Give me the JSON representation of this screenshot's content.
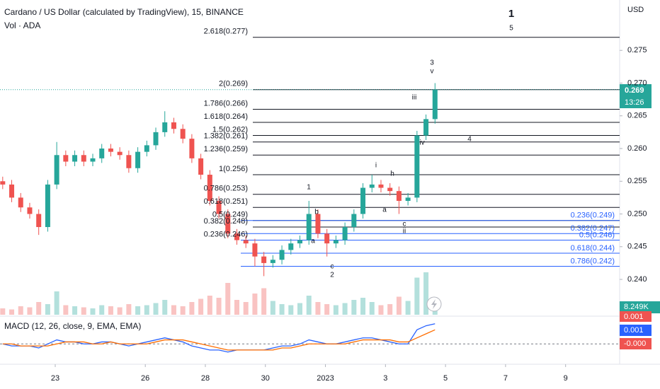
{
  "header": {
    "title": "Cardano / US Dollar (calculated by TradingView), 15, BINANCE",
    "volume_title": "Vol · ADA",
    "currency": "USD",
    "price_badge": "0.269",
    "countdown": "13:26",
    "macd_title": "MACD (12, 26, close, 9, EMA, EMA)",
    "macd_badges": [
      "0.001",
      "0.001",
      "-0.000"
    ]
  },
  "chart_data": {
    "type": "candlestick",
    "ylim": [
      0.2346,
      0.2827
    ],
    "yticks": [
      {
        "value": 0.24,
        "label": "0.240"
      },
      {
        "value": 0.245,
        "label": "0.245"
      },
      {
        "value": 0.25,
        "label": "0.250"
      },
      {
        "value": 0.255,
        "label": "0.255"
      },
      {
        "value": 0.26,
        "label": "0.260"
      },
      {
        "value": 0.265,
        "label": "0.265"
      },
      {
        "value": 0.27,
        "label": "0.270"
      },
      {
        "value": 0.275,
        "label": "0.275"
      }
    ],
    "xlim": [
      -1.84,
      18.8
    ],
    "xticks": [
      {
        "value": 0,
        "label": "23"
      },
      {
        "value": 3,
        "label": "26"
      },
      {
        "value": 5,
        "label": "28"
      },
      {
        "value": 7,
        "label": "30"
      },
      {
        "value": 9,
        "label": "2023"
      },
      {
        "value": 11,
        "label": "3"
      },
      {
        "value": 13,
        "label": "5"
      },
      {
        "value": 15,
        "label": "7"
      },
      {
        "value": 17,
        "label": "9"
      }
    ],
    "up_color": "#26a69a",
    "down_color": "#ef5350",
    "x": [
      -1.75,
      -1.45,
      -1.15,
      -0.85,
      -0.55,
      -0.25,
      0.05,
      0.35,
      0.65,
      0.95,
      1.25,
      1.55,
      1.85,
      2.15,
      2.45,
      2.75,
      3.05,
      3.35,
      3.65,
      3.95,
      4.25,
      4.55,
      4.85,
      5.15,
      5.45,
      5.75,
      6.05,
      6.35,
      6.65,
      6.95,
      7.25,
      7.55,
      7.85,
      8.15,
      8.45,
      8.75,
      9.05,
      9.35,
      9.65,
      9.95,
      10.25,
      10.55,
      10.85,
      11.15,
      11.45,
      11.75,
      12.05,
      12.35,
      12.65
    ],
    "open": [
      0.255,
      0.2545,
      0.2525,
      0.251,
      0.25,
      0.248,
      0.2545,
      0.259,
      0.258,
      0.259,
      0.258,
      0.2585,
      0.26,
      0.2595,
      0.259,
      0.257,
      0.2595,
      0.2605,
      0.2625,
      0.264,
      0.263,
      0.2615,
      0.2585,
      0.256,
      0.252,
      0.25,
      0.247,
      0.246,
      0.2455,
      0.2435,
      0.2425,
      0.243,
      0.2445,
      0.2455,
      0.246,
      0.25,
      0.247,
      0.2455,
      0.246,
      0.248,
      0.25,
      0.254,
      0.2545,
      0.254,
      0.2535,
      0.252,
      0.2525,
      0.262,
      0.2645
    ],
    "high": [
      0.2557,
      0.2552,
      0.2532,
      0.2517,
      0.2507,
      0.2552,
      0.261,
      0.2597,
      0.2597,
      0.2597,
      0.2592,
      0.2607,
      0.2607,
      0.2602,
      0.2597,
      0.2602,
      0.2612,
      0.2632,
      0.2657,
      0.2647,
      0.2637,
      0.2622,
      0.2592,
      0.2567,
      0.2527,
      0.2507,
      0.2477,
      0.2467,
      0.2462,
      0.2442,
      0.2437,
      0.2452,
      0.2462,
      0.2467,
      0.252,
      0.2507,
      0.2477,
      0.2467,
      0.2487,
      0.2507,
      0.2547,
      0.256,
      0.2552,
      0.2547,
      0.2542,
      0.2532,
      0.2627,
      0.2652,
      0.27
    ],
    "low": [
      0.2538,
      0.2518,
      0.2503,
      0.2493,
      0.2468,
      0.2473,
      0.2538,
      0.2573,
      0.2573,
      0.2573,
      0.2573,
      0.2578,
      0.2588,
      0.2583,
      0.2563,
      0.2563,
      0.2588,
      0.2598,
      0.2618,
      0.2623,
      0.2608,
      0.2578,
      0.2553,
      0.2513,
      0.2493,
      0.2463,
      0.2453,
      0.2448,
      0.242,
      0.2405,
      0.2418,
      0.2423,
      0.2438,
      0.2448,
      0.2453,
      0.2463,
      0.2435,
      0.2448,
      0.2453,
      0.2473,
      0.2493,
      0.2533,
      0.2533,
      0.2528,
      0.25,
      0.2513,
      0.2518,
      0.2613,
      0.2638
    ],
    "close": [
      0.2545,
      0.2525,
      0.251,
      0.25,
      0.248,
      0.2545,
      0.259,
      0.258,
      0.259,
      0.258,
      0.2585,
      0.26,
      0.2595,
      0.259,
      0.257,
      0.2595,
      0.2605,
      0.2625,
      0.264,
      0.263,
      0.2615,
      0.2585,
      0.256,
      0.252,
      0.25,
      0.247,
      0.246,
      0.2455,
      0.2435,
      0.2425,
      0.243,
      0.2445,
      0.2455,
      0.246,
      0.25,
      0.247,
      0.2455,
      0.246,
      0.248,
      0.25,
      0.254,
      0.2545,
      0.254,
      0.2535,
      0.252,
      0.2525,
      0.262,
      0.2645,
      0.269
    ],
    "volume": [
      6,
      5,
      8,
      7,
      12,
      10,
      22,
      9,
      8,
      7,
      6,
      9,
      8,
      7,
      10,
      8,
      9,
      11,
      14,
      9,
      8,
      12,
      15,
      18,
      16,
      30,
      14,
      12,
      20,
      25,
      13,
      10,
      9,
      11,
      18,
      12,
      10,
      9,
      11,
      14,
      16,
      12,
      9,
      10,
      17,
      13,
      35,
      40,
      8.249
    ],
    "volume_last_label": "8.249K",
    "volume_lim": [
      0,
      60
    ],
    "fib_extension": [
      {
        "price": 0.277,
        "label": "2.618(0.277)"
      },
      {
        "price": 0.269,
        "label": "2(0.269)"
      },
      {
        "price": 0.266,
        "label": "1.786(0.266)"
      },
      {
        "price": 0.264,
        "label": "1.618(0.264)"
      },
      {
        "price": 0.262,
        "label": "1.5(0.262)"
      },
      {
        "price": 0.261,
        "label": "1.382(0.261)"
      },
      {
        "price": 0.259,
        "label": "1.236(0.259)"
      },
      {
        "price": 0.256,
        "label": "1(0.256)"
      },
      {
        "price": 0.253,
        "label": "0.786(0.253)"
      },
      {
        "price": 0.251,
        "label": "0.618(0.251)"
      },
      {
        "price": 0.249,
        "label": "0.5(0.249)"
      },
      {
        "price": 0.248,
        "label": "0.382(0.248)"
      },
      {
        "price": 0.246,
        "label": "0.236(0.246)"
      }
    ],
    "fib_retracement": [
      {
        "price": 0.249,
        "label": "0.236(0.249)"
      },
      {
        "price": 0.247,
        "label": "0.382(0.247)"
      },
      {
        "price": 0.246,
        "label": "0.5(0.246)"
      },
      {
        "price": 0.244,
        "label": "0.618(0.244)"
      },
      {
        "price": 0.242,
        "label": "0.786(0.242)"
      }
    ],
    "fib_ext_color": "#131722",
    "fib_ret_color": "#2962ff",
    "last_price": 0.269,
    "macd": {
      "ylim": [
        -0.0009,
        0.0012
      ],
      "macd_color": "#2962ff",
      "signal_color": "#ff6d00",
      "macd": [
        0,
        -0.0001,
        -0.0001,
        -0.0001,
        -0.0002,
        0,
        0.0002,
        0.0001,
        0.0001,
        0,
        0,
        0.0001,
        0.0001,
        0,
        -0.0001,
        0,
        0.0001,
        0.0002,
        0.0003,
        0.0002,
        0.0001,
        -0.0001,
        -0.0002,
        -0.0003,
        -0.0003,
        -0.0004,
        -0.0003,
        -0.0003,
        -0.0003,
        -0.0003,
        -0.0002,
        -0.0001,
        -0.0001,
        0,
        0.0002,
        0.0001,
        0,
        0,
        0.0001,
        0.0002,
        0.0003,
        0.0003,
        0.0002,
        0.0001,
        0,
        0,
        0.0007,
        0.0009,
        0.001
      ],
      "signal": [
        0,
        0,
        -0.0001,
        -0.0001,
        -0.0001,
        -0.0001,
        0,
        0.0001,
        0.0001,
        0.0001,
        0,
        0,
        0.0001,
        0,
        0,
        0,
        0,
        0.0001,
        0.0002,
        0.0002,
        0.0002,
        0.0001,
        0,
        -0.0001,
        -0.0002,
        -0.0003,
        -0.0003,
        -0.0003,
        -0.0003,
        -0.0003,
        -0.0003,
        -0.0002,
        -0.0002,
        -0.0001,
        0,
        0,
        0,
        0,
        0,
        0.0001,
        0.0002,
        0.0002,
        0.0002,
        0.0002,
        0.0001,
        0.0001,
        0.0003,
        0.0005,
        0.0007
      ]
    }
  },
  "waves": [
    "1",
    "5",
    "3",
    "v",
    "iii",
    "iv",
    "4",
    "i",
    "h",
    "b",
    "a",
    "a",
    "c",
    "ii",
    "1",
    "c",
    "2"
  ]
}
